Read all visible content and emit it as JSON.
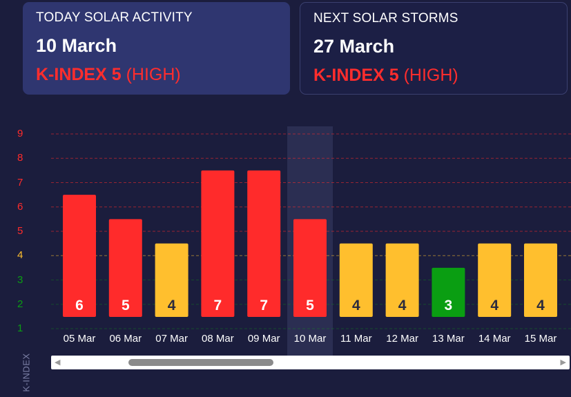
{
  "today_card": {
    "title": "TODAY SOLAR ACTIVITY",
    "date": "10 March",
    "k_label": "K-INDEX 5",
    "k_level": "(HIGH)"
  },
  "next_card": {
    "title": "NEXT SOLAR STORMS",
    "date": "27 March",
    "k_label": "K-INDEX 5",
    "k_level": "(HIGH)"
  },
  "colors": {
    "high": "#ff2b2b",
    "moderate": "#ffbf2e",
    "low": "#0a9e12",
    "background": "#1b1d3d",
    "highlight": "#2e3156"
  },
  "chart_data": {
    "type": "bar",
    "categories": [
      "05 Mar",
      "06 Mar",
      "07 Mar",
      "08 Mar",
      "09 Mar",
      "10 Mar",
      "11 Mar",
      "12 Mar",
      "13 Mar",
      "14 Mar",
      "15 Mar"
    ],
    "values": [
      6,
      5,
      4,
      7,
      7,
      5,
      4,
      4,
      3,
      4,
      4
    ],
    "bar_tops": [
      6.5,
      5.5,
      4.5,
      7.5,
      7.5,
      5.5,
      4.5,
      4.5,
      3.5,
      4.5,
      4.5
    ],
    "data_labels": [
      "6",
      "5",
      "4",
      "7",
      "7",
      "5",
      "4",
      "4",
      "3",
      "4",
      "4"
    ],
    "level": [
      "high",
      "high",
      "moderate",
      "high",
      "high",
      "high",
      "moderate",
      "moderate",
      "low",
      "moderate",
      "moderate"
    ],
    "highlight_category": "10 Mar",
    "yticks": [
      "1",
      "2",
      "3",
      "4",
      "5",
      "6",
      "7",
      "8",
      "9"
    ],
    "ytick_levels": [
      "low",
      "low",
      "low",
      "moderate",
      "high",
      "high",
      "high",
      "high",
      "high"
    ],
    "ylabel": "K-INDEX",
    "ylim": [
      1,
      9
    ],
    "grid": "dashed horizontal",
    "legend": "none"
  }
}
